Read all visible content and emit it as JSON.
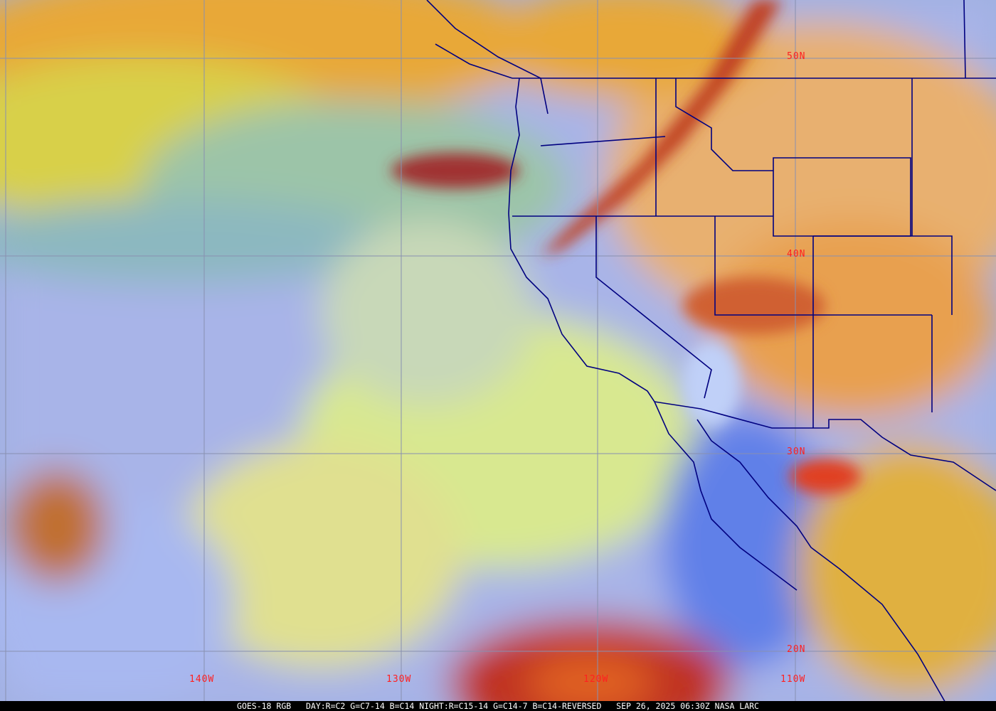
{
  "map": {
    "lat_labels": [
      "50N",
      "40N",
      "30N",
      "20N"
    ],
    "lon_labels": [
      "140W",
      "130W",
      "120W",
      "110W"
    ]
  },
  "caption": {
    "product": "GOES-18 RGB",
    "recipe": "DAY:R=C2 G=C7-14 B=C14 NIGHT:R=C15-14 G=C14-7 B=C14-REVERSED",
    "datetime": "SEP 26, 2025 06:30Z",
    "source": "NASA LARC"
  },
  "colors": {
    "grid": "#8890b0",
    "borders": "#000080",
    "labels": "#ff2020"
  }
}
